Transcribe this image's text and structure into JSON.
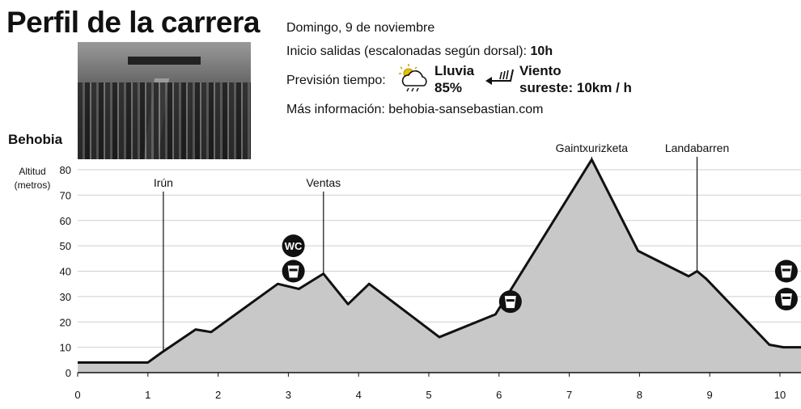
{
  "header": {
    "title": "Perfil de la carrera",
    "date": "Domingo, 9 de noviembre",
    "start_label": "Inicio salidas (escalonadas según dorsal):",
    "start_time": "10h",
    "forecast_label": "Previsión tiempo:",
    "rain_label": "Lluvia",
    "rain_value": "85%",
    "wind_label": "Viento",
    "wind_value": "sureste: 10km / h",
    "more_info": "Más información: behobia-sansebastian.com"
  },
  "chart_data": {
    "type": "area",
    "start_label": "Behobia",
    "ylabel": "Altitud\n(metros)",
    "yticks": [
      0,
      10,
      20,
      30,
      40,
      50,
      60,
      70,
      80
    ],
    "xticks": [
      0,
      1,
      2,
      3,
      4,
      5,
      6,
      7,
      8,
      9,
      10
    ],
    "xlim": [
      0,
      10.3
    ],
    "ylim": [
      0,
      85
    ],
    "grid": true,
    "profile": {
      "x": [
        0,
        1.0,
        1.2,
        1.68,
        1.9,
        2.85,
        3.15,
        3.5,
        3.85,
        4.15,
        5.15,
        5.95,
        7.32,
        7.98,
        8.7,
        8.82,
        8.95,
        9.85,
        10.05,
        10.3
      ],
      "y": [
        4,
        4,
        8,
        17,
        16,
        35,
        33,
        39,
        27,
        35,
        14,
        23,
        84,
        48,
        38,
        40,
        37,
        11,
        10,
        10
      ]
    },
    "landmarks": [
      {
        "name": "Irún",
        "x": 1.22
      },
      {
        "name": "Ventas",
        "x": 3.5
      },
      {
        "name": "Gaintxurizketa",
        "x": 7.32
      },
      {
        "name": "Landabarren",
        "x": 8.82
      }
    ],
    "services": [
      {
        "type": "wc",
        "label": "WC",
        "x": 2.68,
        "y": 50
      },
      {
        "type": "water",
        "x": 2.68,
        "y": 40
      },
      {
        "type": "water",
        "x": 5.77,
        "y": 28
      },
      {
        "type": "water",
        "x": 9.7,
        "y": 40
      },
      {
        "type": "water",
        "x": 9.7,
        "y": 29
      }
    ],
    "colors": {
      "fill": "#c8c8c8",
      "line": "#111111",
      "grid": "#cfcfcf",
      "icon": "#111111"
    }
  }
}
